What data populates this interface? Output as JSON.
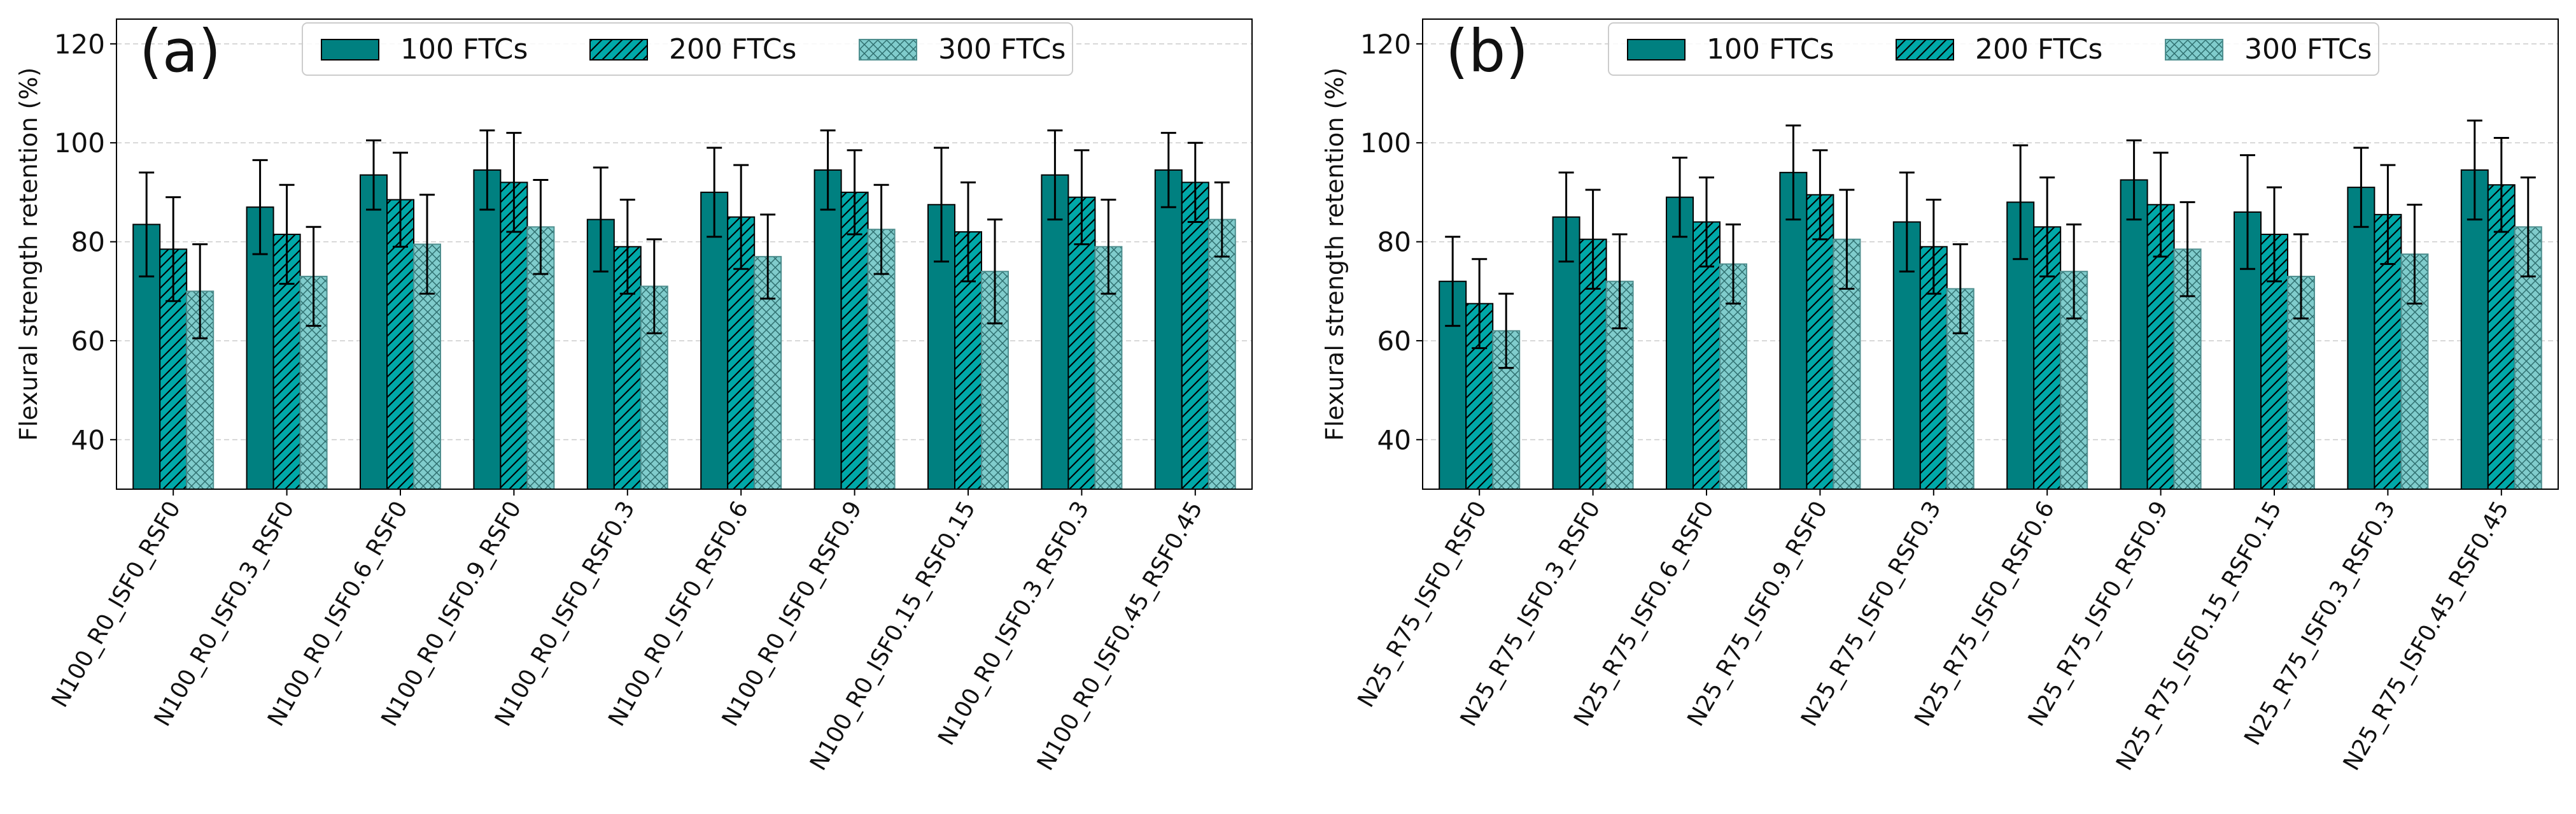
{
  "colors": {
    "ftc100": "#008080",
    "ftc200": "#00a8a8",
    "ftc300": "#80cccc",
    "edge": "#000000",
    "grid": "#cccccc"
  },
  "chart_data": [
    {
      "type": "bar",
      "panel_label": "(a)",
      "ylabel": "Flexural strength retention (%)",
      "ylim": [
        30,
        125
      ],
      "yticks": [
        40,
        60,
        80,
        100,
        120
      ],
      "legend": [
        "100 FTCs",
        "200 FTCs",
        "300 FTCs"
      ],
      "legend_position": "top-center",
      "grid": "horizontal-dashed",
      "categories": [
        "N100_R0_ISF0_RSF0",
        "N100_R0_ISF0.3_RSF0",
        "N100_R0_ISF0.6_RSF0",
        "N100_R0_ISF0.9_RSF0",
        "N100_R0_ISF0_RSF0.3",
        "N100_R0_ISF0_RSF0.6",
        "N100_R0_ISF0_RSF0.9",
        "N100_R0_ISF0.15_RSF0.15",
        "N100_R0_ISF0.3_RSF0.3",
        "N100_R0_ISF0.45_RSF0.45"
      ],
      "series": [
        {
          "name": "100 FTCs",
          "hatch": "none",
          "values": [
            83.5,
            87,
            93.5,
            94.5,
            84.5,
            90,
            94.5,
            87.5,
            93.5,
            94.5
          ],
          "errors": [
            10.5,
            9.5,
            7,
            8,
            10.5,
            9,
            8,
            11.5,
            9,
            7.5
          ]
        },
        {
          "name": "200 FTCs",
          "hatch": "diagonal",
          "values": [
            78.5,
            81.5,
            88.5,
            92,
            79,
            85,
            90,
            82,
            89,
            92
          ],
          "errors": [
            10.5,
            10,
            9.5,
            10,
            9.5,
            10.5,
            8.5,
            10,
            9.5,
            8
          ]
        },
        {
          "name": "300 FTCs",
          "hatch": "cross",
          "values": [
            70,
            73,
            79.5,
            83,
            71,
            77,
            82.5,
            74,
            79,
            84.5
          ],
          "errors": [
            9.5,
            10,
            10,
            9.5,
            9.5,
            8.5,
            9,
            10.5,
            9.5,
            7.5
          ]
        }
      ]
    },
    {
      "type": "bar",
      "panel_label": "(b)",
      "ylabel": "Flexural strength retention (%)",
      "ylim": [
        30,
        125
      ],
      "yticks": [
        40,
        60,
        80,
        100,
        120
      ],
      "legend": [
        "100 FTCs",
        "200 FTCs",
        "300 FTCs"
      ],
      "legend_position": "top-center",
      "grid": "horizontal-dashed",
      "categories": [
        "N25_R75_ISF0_RSF0",
        "N25_R75_ISF0.3_RSF0",
        "N25_R75_ISF0.6_RSF0",
        "N25_R75_ISF0.9_RSF0",
        "N25_R75_ISF0_RSF0.3",
        "N25_R75_ISF0_RSF0.6",
        "N25_R75_ISF0_RSF0.9",
        "N25_R75_ISF0.15_RSF0.15",
        "N25_R75_ISF0.3_RSF0.3",
        "N25_R75_ISF0.45_RSF0.45"
      ],
      "series": [
        {
          "name": "100 FTCs",
          "hatch": "none",
          "values": [
            72,
            85,
            89,
            94,
            84,
            88,
            92.5,
            86,
            91,
            94.5
          ],
          "errors": [
            9,
            9,
            8,
            9.5,
            10,
            11.5,
            8,
            11.5,
            8,
            10
          ]
        },
        {
          "name": "200 FTCs",
          "hatch": "diagonal",
          "values": [
            67.5,
            80.5,
            84,
            89.5,
            79,
            83,
            87.5,
            81.5,
            85.5,
            91.5
          ],
          "errors": [
            9,
            10,
            9,
            9,
            9.5,
            10,
            10.5,
            9.5,
            10,
            9.5
          ]
        },
        {
          "name": "300 FTCs",
          "hatch": "cross",
          "values": [
            62,
            72,
            75.5,
            80.5,
            70.5,
            74,
            78.5,
            73,
            77.5,
            83
          ],
          "errors": [
            7.5,
            9.5,
            8,
            10,
            9,
            9.5,
            9.5,
            8.5,
            10,
            10
          ]
        }
      ]
    }
  ]
}
